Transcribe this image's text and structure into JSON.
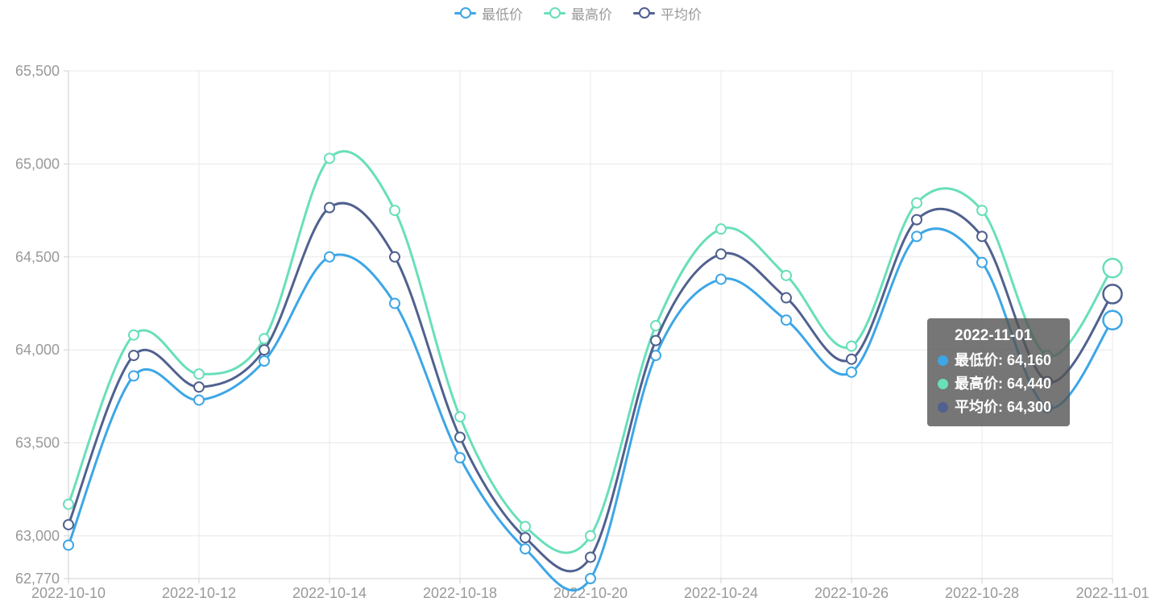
{
  "chart_data": {
    "type": "line",
    "smooth": true,
    "title": "",
    "xlabel": "",
    "ylabel": "",
    "x": [
      "2022-10-10",
      "2022-10-11",
      "2022-10-12",
      "2022-10-13",
      "2022-10-14",
      "2022-10-17",
      "2022-10-18",
      "2022-10-19",
      "2022-10-20",
      "2022-10-21",
      "2022-10-24",
      "2022-10-25",
      "2022-10-26",
      "2022-10-27",
      "2022-10-28",
      "2022-10-31",
      "2022-11-01"
    ],
    "x_labels_shown": [
      "2022-10-10",
      "2022-10-12",
      "2022-10-14",
      "2022-10-18",
      "2022-10-20",
      "2022-10-24",
      "2022-10-26",
      "2022-10-28",
      "2022-11-01"
    ],
    "series": [
      {
        "key": "min",
        "name": "最低价",
        "color": "#3da6e6",
        "values": [
          62950,
          63860,
          63730,
          63940,
          64500,
          64250,
          63420,
          62930,
          62770,
          63970,
          64380,
          64160,
          63880,
          64610,
          64470,
          63690,
          64160
        ]
      },
      {
        "key": "max",
        "name": "最高价",
        "color": "#68dfba",
        "values": [
          63170,
          64080,
          63870,
          64060,
          65030,
          64750,
          63640,
          63050,
          63000,
          64130,
          64650,
          64400,
          64020,
          64790,
          64750,
          63970,
          64440
        ]
      },
      {
        "key": "avg",
        "name": "平均价",
        "color": "#50618f",
        "values": [
          63060,
          63970,
          63800,
          64000,
          64765,
          64500,
          63530,
          62990,
          62885,
          64050,
          64515,
          64280,
          63950,
          64700,
          64610,
          63830,
          64300
        ]
      }
    ],
    "ylim": [
      62770,
      65500
    ],
    "y_ticks": [
      {
        "value": 62770,
        "label": "62,770"
      },
      {
        "value": 63000,
        "label": "63,000"
      },
      {
        "value": 63500,
        "label": "63,500"
      },
      {
        "value": 64000,
        "label": "64,000"
      },
      {
        "value": 64500,
        "label": "64,500"
      },
      {
        "value": 65000,
        "label": "65,000"
      },
      {
        "value": 65500,
        "label": "65,500"
      }
    ],
    "grid": true,
    "legend_position": "top-center",
    "grid_color": "#e8e8e8",
    "axis_color": "#cfcfcf",
    "label_color": "#999999"
  },
  "legend": {
    "items": [
      {
        "key": "min",
        "label": "最低价"
      },
      {
        "key": "max",
        "label": "最高价"
      },
      {
        "key": "avg",
        "label": "平均价"
      }
    ]
  },
  "tooltip": {
    "title": "2022-11-01",
    "highlighted_date": "2022-11-01",
    "separator": ": ",
    "background": "rgba(84,84,84,0.80)",
    "rows": [
      {
        "key": "min",
        "label": "最低价",
        "value": "64,160"
      },
      {
        "key": "max",
        "label": "最高价",
        "value": "64,440"
      },
      {
        "key": "avg",
        "label": "平均价",
        "value": "64,300"
      }
    ]
  }
}
